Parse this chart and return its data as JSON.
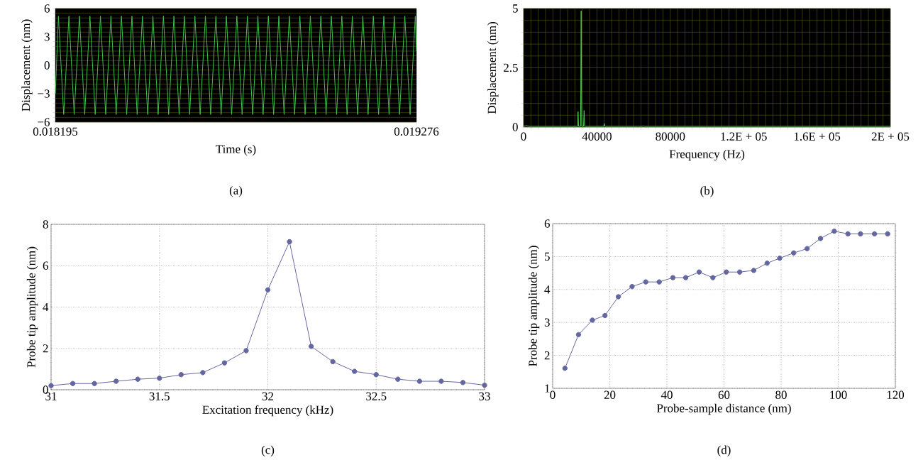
{
  "chart_data": [
    {
      "type": "line",
      "xlabel": "Time (s)",
      "ylabel": "Displacement (nm)",
      "annotations": [
        "(a)"
      ],
      "xlim": [
        0.018195,
        0.019276
      ],
      "ylim": [
        -6,
        6
      ],
      "xticks": [
        0.018195,
        0.019276
      ],
      "yticks": [
        {
          "value": -6,
          "label": "−6"
        },
        {
          "value": -5.5,
          "label": null
        },
        {
          "value": -5,
          "label": null
        },
        {
          "value": -4.5,
          "label": null
        },
        {
          "value": -4,
          "label": null
        },
        {
          "value": -3.5,
          "label": null
        },
        {
          "value": -3,
          "label": "−3"
        },
        {
          "value": -2.5,
          "label": null
        },
        {
          "value": -2,
          "label": null
        },
        {
          "value": -1.5,
          "label": null
        },
        {
          "value": -1,
          "label": null
        },
        {
          "value": -0.5,
          "label": null
        },
        0,
        {
          "value": 0.5,
          "label": null
        },
        {
          "value": 1,
          "label": null
        },
        {
          "value": 1.5,
          "label": null
        },
        {
          "value": 2,
          "label": null
        },
        {
          "value": 2.5,
          "label": null
        },
        3,
        {
          "value": 3.5,
          "label": null
        },
        {
          "value": 4,
          "label": null
        },
        {
          "value": 4.5,
          "label": null
        },
        {
          "value": 5,
          "label": null
        },
        {
          "value": 5.5,
          "label": null
        },
        6
      ],
      "grid": "y",
      "marker": "none",
      "line_style": "solid",
      "series": [
        {
          "color": "#3ec24a",
          "x": [
            0.018195,
            0.0182043,
            0.01822,
            0.0182357,
            0.0182514,
            0.0182671,
            0.0182829,
            0.0182986,
            0.0183143,
            0.01833,
            0.0183457,
            0.0183614,
            0.0183771,
            0.0183928,
            0.0184085,
            0.0184242,
            0.0184399,
            0.0184557,
            0.0184714,
            0.0184871,
            0.0185028,
            0.0185185,
            0.0185342,
            0.0185499,
            0.0185656,
            0.0185813,
            0.018597,
            0.0186128,
            0.0186285,
            0.0186442,
            0.0186599,
            0.0186756,
            0.0186913,
            0.018707,
            0.0187227,
            0.0187384,
            0.0187541,
            0.0187699,
            0.0187856,
            0.0188013,
            0.018817,
            0.0188327,
            0.0188484,
            0.0188641,
            0.0188798,
            0.0188955,
            0.0189112,
            0.018927,
            0.0189427,
            0.0189584,
            0.0189741,
            0.0189898,
            0.0190055,
            0.0190212,
            0.0190369,
            0.0190526,
            0.0190683,
            0.0190841,
            0.0190998,
            0.0191155,
            0.0191312,
            0.0191469,
            0.0191626,
            0.0191783,
            0.019194,
            0.0192097,
            0.0192254,
            0.0192412,
            0.0192569,
            0.0192726,
            0.019276
          ],
          "values": [
            -3,
            5.2,
            -5.2,
            5.2,
            -5.2,
            5.2,
            -5.2,
            5.2,
            -5.2,
            5.2,
            -5.2,
            5.2,
            -5.2,
            5.2,
            -5.2,
            5.2,
            -5.2,
            5.2,
            -5.2,
            5.2,
            -5.2,
            5.2,
            -5.2,
            5.2,
            -5.2,
            5.2,
            -5.2,
            5.2,
            -5.2,
            5.2,
            -5.2,
            5.2,
            -5.2,
            5.2,
            -5.2,
            5.2,
            -5.2,
            5.2,
            -5.2,
            5.2,
            -5.2,
            5.2,
            -5.2,
            5.2,
            -5.2,
            5.2,
            -5.2,
            5.2,
            -5.2,
            5.2,
            -5.2,
            5.2,
            -5.2,
            5.2,
            -5.2,
            5.2,
            -5.2,
            5.2,
            -5.2,
            5.2,
            -5.2,
            5.2,
            -5.2,
            5.2,
            -5.2,
            5.2,
            -5.2,
            5.2,
            -5.2,
            5.2,
            1.5
          ]
        }
      ]
    },
    {
      "type": "line",
      "xlabel": "Frequency (Hz)",
      "ylabel": "Displacement (nm)",
      "annotations": [
        "(b)"
      ],
      "xlim": [
        0,
        200000
      ],
      "ylim": [
        0,
        5
      ],
      "xticks": [
        0,
        {
          "value": 4000,
          "label": null
        },
        {
          "value": 8000,
          "label": null
        },
        {
          "value": 12000,
          "label": null
        },
        {
          "value": 16000,
          "label": null
        },
        {
          "value": 20000,
          "label": null
        },
        {
          "value": 24000,
          "label": null
        },
        {
          "value": 28000,
          "label": null
        },
        {
          "value": 32000,
          "label": null
        },
        {
          "value": 36000,
          "label": null
        },
        40000,
        {
          "value": 44000,
          "label": null
        },
        {
          "value": 48000,
          "label": null
        },
        {
          "value": 52000,
          "label": null
        },
        {
          "value": 56000,
          "label": null
        },
        {
          "value": 60000,
          "label": null
        },
        {
          "value": 64000,
          "label": null
        },
        {
          "value": 68000,
          "label": null
        },
        {
          "value": 72000,
          "label": null
        },
        {
          "value": 76000,
          "label": null
        },
        80000,
        {
          "value": 84000,
          "label": null
        },
        {
          "value": 88000,
          "label": null
        },
        {
          "value": 92000,
          "label": null
        },
        {
          "value": 96000,
          "label": null
        },
        {
          "value": 100000,
          "label": null
        },
        {
          "value": 104000,
          "label": null
        },
        {
          "value": 108000,
          "label": null
        },
        {
          "value": 112000,
          "label": null
        },
        {
          "value": 116000,
          "label": null
        },
        {
          "value": 120000,
          "label": "1.2E + 05"
        },
        {
          "value": 124000,
          "label": null
        },
        {
          "value": 128000,
          "label": null
        },
        {
          "value": 132000,
          "label": null
        },
        {
          "value": 136000,
          "label": null
        },
        {
          "value": 140000,
          "label": null
        },
        {
          "value": 144000,
          "label": null
        },
        {
          "value": 148000,
          "label": null
        },
        {
          "value": 152000,
          "label": null
        },
        {
          "value": 156000,
          "label": null
        },
        {
          "value": 160000,
          "label": "1.6E + 05"
        },
        {
          "value": 164000,
          "label": null
        },
        {
          "value": 168000,
          "label": null
        },
        {
          "value": 172000,
          "label": null
        },
        {
          "value": 176000,
          "label": null
        },
        {
          "value": 180000,
          "label": null
        },
        {
          "value": 184000,
          "label": null
        },
        {
          "value": 188000,
          "label": null
        },
        {
          "value": 192000,
          "label": null
        },
        {
          "value": 196000,
          "label": null
        },
        {
          "value": 200000,
          "label": "2E + 05"
        }
      ],
      "yticks": [
        0,
        {
          "value": 0.5,
          "label": null
        },
        {
          "value": 1,
          "label": null
        },
        {
          "value": 1.5,
          "label": null
        },
        {
          "value": 2,
          "label": null
        },
        2.5,
        {
          "value": 3,
          "label": null
        },
        {
          "value": 3.5,
          "label": null
        },
        {
          "value": 4,
          "label": null
        },
        {
          "value": 4.5,
          "label": null
        },
        5
      ],
      "grid": true,
      "marker": "none",
      "line_style": "solid",
      "series": [
        {
          "color": "#4cd04f",
          "x": [
            0,
            1500,
            3000,
            29400,
            29700,
            30000,
            31100,
            31400,
            31700,
            32700,
            33000,
            33300,
            43700,
            44000,
            44300,
            62000,
            62300,
            62600,
            65000,
            65300,
            65600,
            200000
          ],
          "values": [
            0.03,
            0.06,
            0.03,
            0.03,
            0.65,
            0.03,
            0.03,
            4.9,
            0.03,
            0.03,
            0.7,
            0.03,
            0.03,
            0.15,
            0.03,
            0.03,
            0.05,
            0.03,
            0.03,
            0.06,
            0.03,
            0.03
          ]
        }
      ]
    },
    {
      "type": "line",
      "xlabel": "Excitation frequency (kHz)",
      "ylabel": "Probe tip amplitude  (nm)",
      "annotations": [
        "(c)"
      ],
      "xlim": [
        31,
        33
      ],
      "ylim": [
        0,
        8
      ],
      "xticks": [
        31,
        31.5,
        32,
        32.5,
        33
      ],
      "yticks": [
        0,
        2,
        4,
        6,
        8
      ],
      "grid": true,
      "marker": "circle",
      "line_style": "solid",
      "series": [
        {
          "color": "#6466a0",
          "x": [
            31,
            31.1,
            31.2,
            31.3,
            31.4,
            31.5,
            31.6,
            31.7,
            31.8,
            31.9,
            32,
            32.1,
            32.2,
            32.3,
            32.4,
            32.5,
            32.6,
            32.7,
            32.8,
            32.9,
            33
          ],
          "values": [
            0.2,
            0.3,
            0.3,
            0.41,
            0.51,
            0.56,
            0.73,
            0.83,
            1.3,
            1.89,
            4.83,
            7.16,
            2.1,
            1.36,
            0.89,
            0.73,
            0.51,
            0.41,
            0.41,
            0.35,
            0.22
          ]
        }
      ]
    },
    {
      "type": "line",
      "xlabel": "Probe-sample distance (nm)",
      "ylabel": "Probe tip amplitude (nm)",
      "annotations": [
        "(d)"
      ],
      "xlim": [
        0,
        120
      ],
      "ylim": [
        1,
        6
      ],
      "xticks": [
        0,
        20,
        40,
        60,
        80,
        100,
        120
      ],
      "yticks": [
        1,
        2,
        3,
        4,
        5,
        6
      ],
      "grid": true,
      "marker": "circle",
      "line_style": "solid",
      "series": [
        {
          "color": "#6466a0",
          "x": [
            4.3,
            9.05,
            13.9,
            18.3,
            23.0,
            27.8,
            32.6,
            37.3,
            42.1,
            46.6,
            51.3,
            56.1,
            60.8,
            65.5,
            70.4,
            75.1,
            79.5,
            84.4,
            89.1,
            93.8,
            98.6,
            103.4,
            107.8,
            112.7,
            117.3
          ],
          "values": [
            1.61,
            2.63,
            3.07,
            3.21,
            3.78,
            4.09,
            4.23,
            4.23,
            4.36,
            4.36,
            4.53,
            4.36,
            4.53,
            4.53,
            4.58,
            4.8,
            4.95,
            5.11,
            5.24,
            5.55,
            5.77,
            5.69,
            5.69,
            5.69,
            5.69
          ]
        }
      ]
    }
  ]
}
